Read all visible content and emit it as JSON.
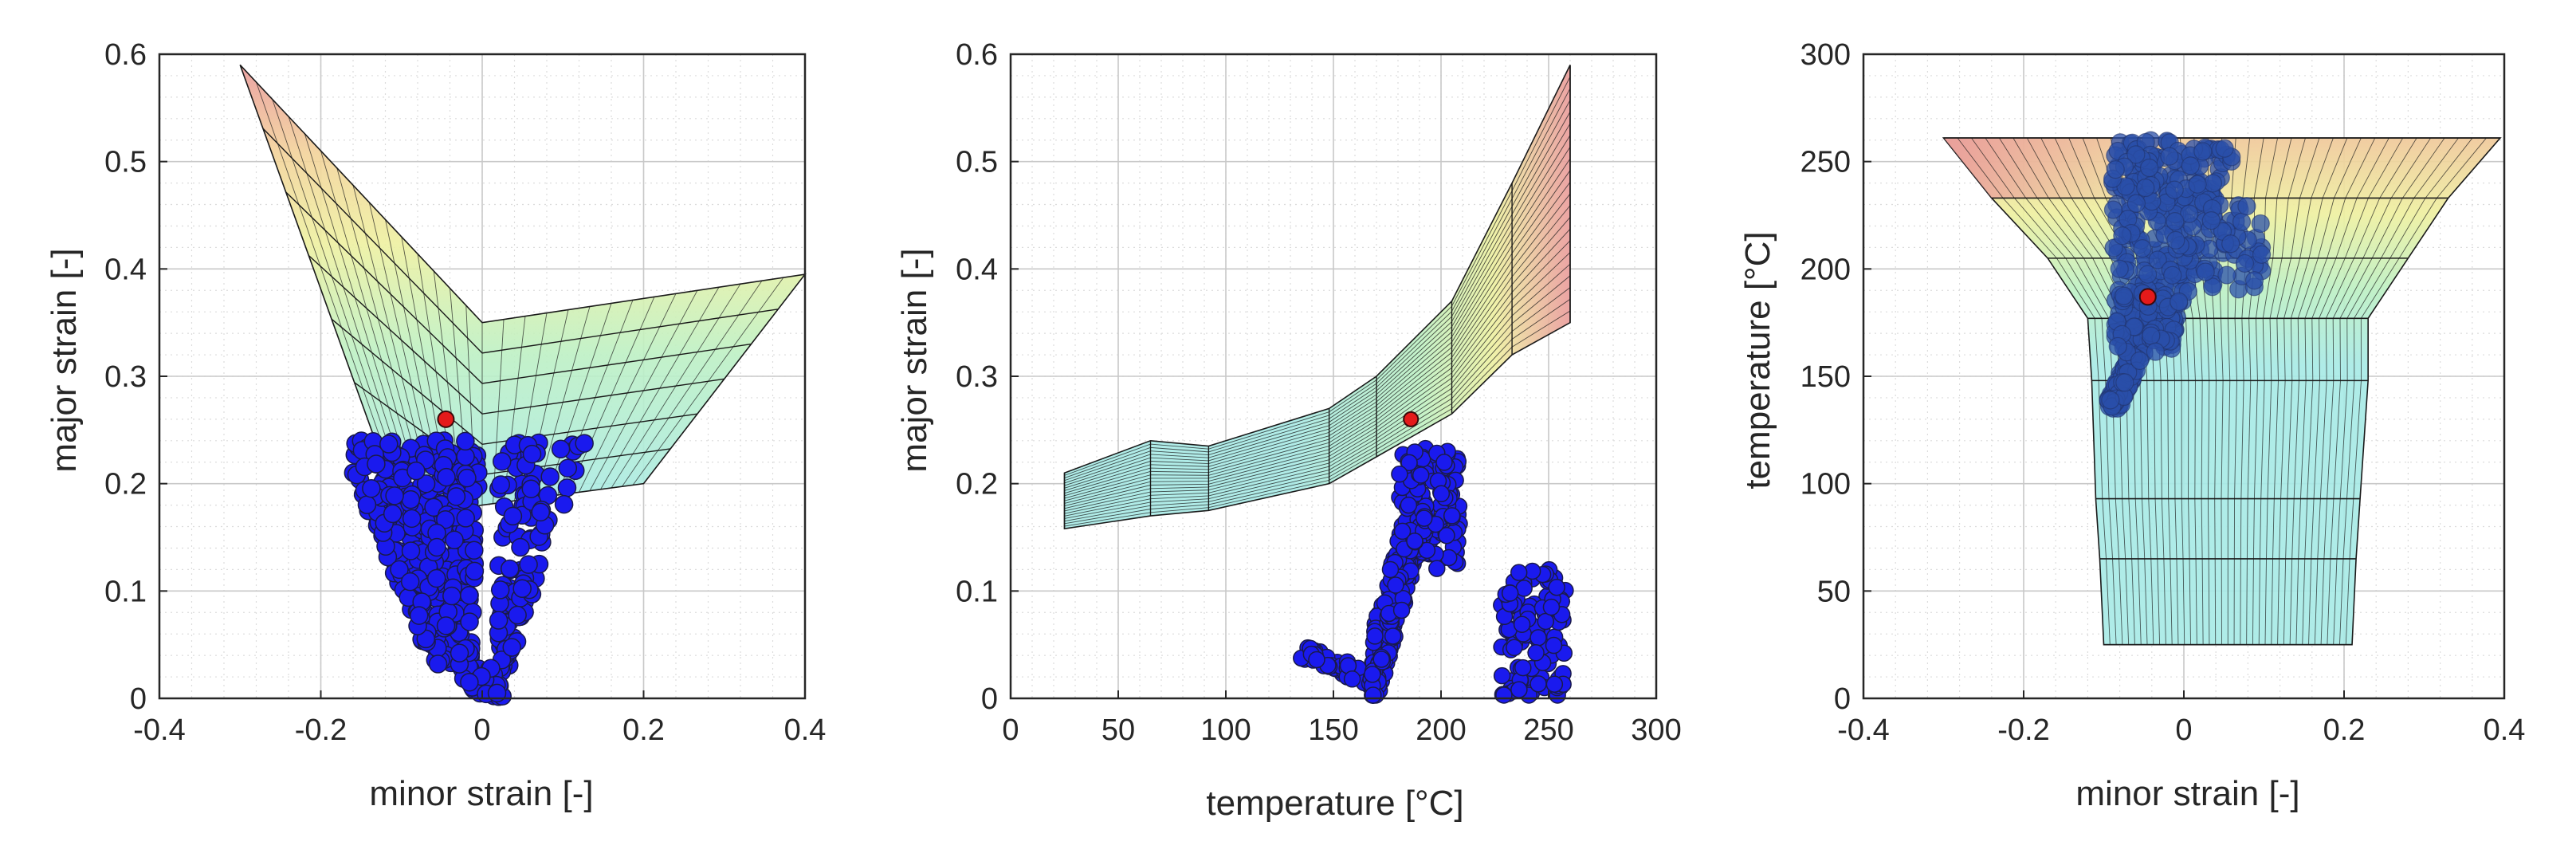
{
  "chart_data": [
    {
      "type": "scatter",
      "xlabel": "minor strain [-]",
      "ylabel": "major strain [-]",
      "xlim": [
        -0.4,
        0.4
      ],
      "ylim": [
        0,
        0.6
      ],
      "xticks": [
        -0.4,
        -0.2,
        0,
        0.2,
        0.4
      ],
      "xticklabels": [
        "-0.4",
        "-0.2",
        "0",
        "0.2",
        "0.4"
      ],
      "yticks": [
        0,
        0.1,
        0.2,
        0.3,
        0.4,
        0.5,
        0.6
      ],
      "yticklabels": [
        "0",
        "0.1",
        "0.2",
        "0.3",
        "0.4",
        "0.5",
        "0.6"
      ],
      "grid": true,
      "surface": {
        "description_type": "forming-limit surface",
        "outline": [
          [
            -0.3,
            0.59
          ],
          [
            0,
            0.35
          ],
          [
            0.4,
            0.395
          ],
          [
            0.2,
            0.2
          ],
          [
            0,
            0.18
          ],
          [
            -0.04,
            0.175
          ],
          [
            -0.13,
            0.235
          ]
        ],
        "vertex": [
          [
            -0.3,
            0.59
          ],
          [
            0,
            0.35
          ],
          [
            0.4,
            0.395
          ]
        ],
        "bottom_curve": [
          [
            -0.13,
            0.235
          ],
          [
            0,
            0.18
          ],
          [
            0.2,
            0.2
          ]
        ],
        "colors": [
          "#e99a9a",
          "#f3d39a",
          "#eef0a0",
          "#bdf0c4",
          "#a8eae6"
        ]
      },
      "scatter_color": "#1a1aee",
      "highlight_point": {
        "x": -0.045,
        "y": 0.26,
        "color": "#e41a1a"
      }
    },
    {
      "type": "scatter",
      "xlabel": "temperature [°C]",
      "ylabel": "major strain [-]",
      "xlim": [
        0,
        300
      ],
      "ylim": [
        0,
        0.6
      ],
      "xticks": [
        0,
        50,
        100,
        150,
        200,
        250,
        300
      ],
      "xticklabels": [
        "0",
        "50",
        "100",
        "150",
        "200",
        "250",
        "300"
      ],
      "yticks": [
        0,
        0.1,
        0.2,
        0.3,
        0.4,
        0.5,
        0.6
      ],
      "yticklabels": [
        "0",
        "0.1",
        "0.2",
        "0.3",
        "0.4",
        "0.5",
        "0.6"
      ],
      "grid": true,
      "surface": {
        "top_curve": [
          [
            25,
            0.21
          ],
          [
            65,
            0.24
          ],
          [
            92,
            0.235
          ],
          [
            148,
            0.27
          ],
          [
            170,
            0.3
          ],
          [
            205,
            0.37
          ],
          [
            233,
            0.48
          ],
          [
            260,
            0.59
          ]
        ],
        "bottom_curve": [
          [
            25,
            0.158
          ],
          [
            65,
            0.17
          ],
          [
            92,
            0.175
          ],
          [
            148,
            0.2
          ],
          [
            170,
            0.225
          ],
          [
            205,
            0.265
          ],
          [
            233,
            0.32
          ],
          [
            260,
            0.35
          ]
        ],
        "colors": [
          "#a8eae6",
          "#bdf0c4",
          "#eef0a0",
          "#f3d39a",
          "#e99a9a"
        ]
      },
      "scatter_color": "#1a1aee",
      "highlight_point": {
        "x": 186,
        "y": 0.26,
        "color": "#e41a1a"
      }
    },
    {
      "type": "scatter",
      "xlabel": "minor strain [-]",
      "ylabel": "temperature [°C]",
      "xlim": [
        -0.4,
        0.4
      ],
      "ylim": [
        0,
        300
      ],
      "xticks": [
        -0.4,
        -0.2,
        0,
        0.2,
        0.4
      ],
      "xticklabels": [
        "-0.4",
        "-0.2",
        "0",
        "0.2",
        "0.4"
      ],
      "yticks": [
        0,
        50,
        100,
        150,
        200,
        250,
        300
      ],
      "yticklabels": [
        "0",
        "50",
        "100",
        "150",
        "200",
        "250",
        "300"
      ],
      "grid": true,
      "surface": {
        "levels": [
          25,
          65,
          93,
          148,
          177,
          205,
          233,
          261
        ],
        "half_widths": [
          0.2,
          0.21,
          0.22,
          0.23,
          0.24,
          0.27,
          0.32,
          0.39
        ],
        "left_offsets": [
          -0.1,
          -0.105,
          -0.11,
          -0.115,
          -0.12,
          -0.17,
          -0.24,
          -0.3
        ],
        "colors": [
          "#a8eae6",
          "#a8eae6",
          "#b2ecd8",
          "#bdf0c4",
          "#eef0a0",
          "#f3d39a",
          "#e99a9a"
        ]
      },
      "scatter_color": "#2a4faa",
      "highlight_point": {
        "x": -0.045,
        "y": 187,
        "color": "#e41a1a"
      }
    }
  ]
}
